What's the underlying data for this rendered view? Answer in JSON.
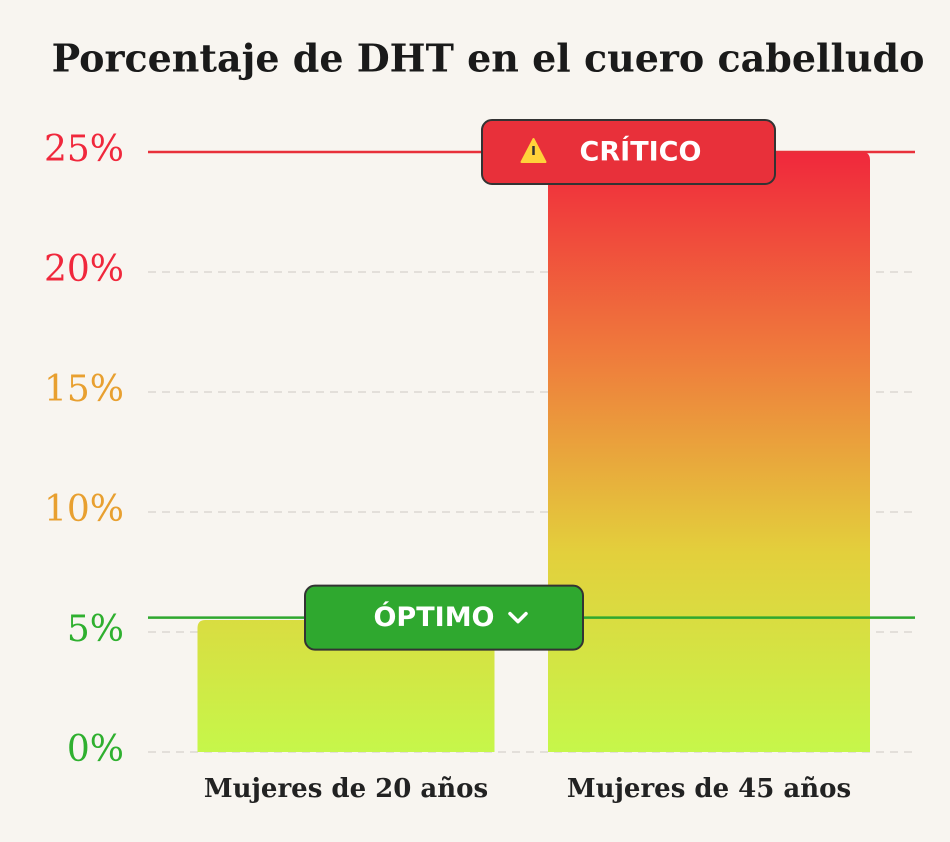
{
  "chart_data": {
    "type": "bar",
    "title": "Porcentaje de DHT en el cuero cabelludo",
    "categories": [
      "Mujeres de 20 años",
      "Mujeres de 45 años"
    ],
    "values": [
      5.5,
      25
    ],
    "gradient": [
      "#c6f74a",
      "#e3cf3c",
      "#ef7a3c",
      "#f0283c"
    ],
    "ylim": [
      0,
      25
    ],
    "yticks": [
      {
        "value": 0,
        "label": "0%"
      },
      {
        "value": 5,
        "label": "5%"
      },
      {
        "value": 10,
        "label": "10%"
      },
      {
        "value": 15,
        "label": "15%"
      },
      {
        "value": 20,
        "label": "20%"
      },
      {
        "value": 25,
        "label": "25%"
      }
    ],
    "ytick_colors": [
      "#2fb02f",
      "#2fb02f",
      "#e8a030",
      "#e8a030",
      "#f0283c",
      "#f0283c"
    ],
    "grid": true,
    "reference_lines": [
      {
        "label": "CRÍTICO",
        "value": 25,
        "color": "#e8303a"
      },
      {
        "label": "ÓPTIMO",
        "value": 5.6,
        "color": "#2fa82f"
      }
    ]
  }
}
